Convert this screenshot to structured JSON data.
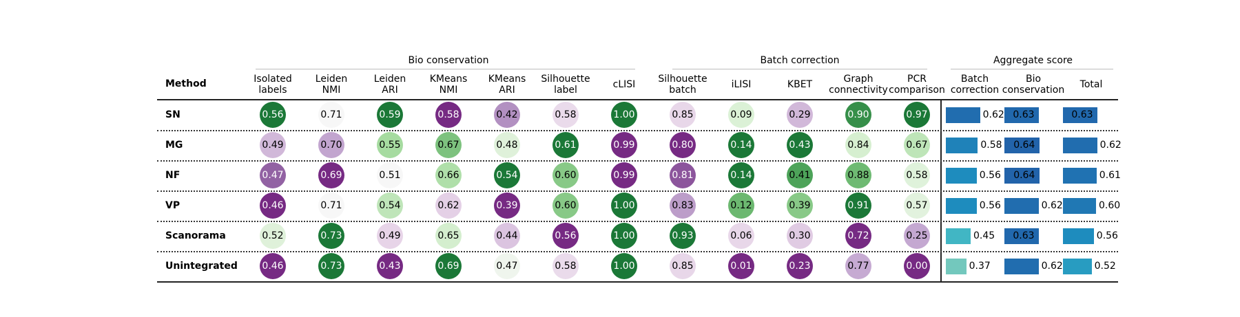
{
  "chart_data": {
    "type": "table",
    "method_header": "Method",
    "groups": [
      {
        "key": "bio",
        "title": "Bio conservation"
      },
      {
        "key": "batch",
        "title": "Batch correction"
      },
      {
        "key": "agg",
        "title": "Aggregate score"
      }
    ],
    "columns": [
      {
        "key": "isolated_labels",
        "group": "bio",
        "label": [
          "Isolated",
          "labels"
        ],
        "kind": "circle"
      },
      {
        "key": "leiden_nmi",
        "group": "bio",
        "label": [
          "Leiden",
          "NMI"
        ],
        "kind": "circle"
      },
      {
        "key": "leiden_ari",
        "group": "bio",
        "label": [
          "Leiden",
          "ARI"
        ],
        "kind": "circle"
      },
      {
        "key": "kmeans_nmi",
        "group": "bio",
        "label": [
          "KMeans",
          "NMI"
        ],
        "kind": "circle"
      },
      {
        "key": "kmeans_ari",
        "group": "bio",
        "label": [
          "KMeans",
          "ARI"
        ],
        "kind": "circle"
      },
      {
        "key": "silhouette_label",
        "group": "bio",
        "label": [
          "Silhouette",
          "label"
        ],
        "kind": "circle"
      },
      {
        "key": "clisi",
        "group": "bio",
        "label": [
          "cLISI"
        ],
        "kind": "circle"
      },
      {
        "key": "silhouette_batch",
        "group": "batch",
        "label": [
          "Silhouette",
          "batch"
        ],
        "kind": "circle"
      },
      {
        "key": "ilisi",
        "group": "batch",
        "label": [
          "iLISI"
        ],
        "kind": "circle"
      },
      {
        "key": "kbet",
        "group": "batch",
        "label": [
          "KBET"
        ],
        "kind": "circle"
      },
      {
        "key": "graph_connectivity",
        "group": "batch",
        "label": [
          "Graph",
          "connectivity"
        ],
        "kind": "circle"
      },
      {
        "key": "pcr_comparison",
        "group": "batch",
        "label": [
          "PCR",
          "comparison"
        ],
        "kind": "circle"
      },
      {
        "key": "agg_batch",
        "group": "agg",
        "label": [
          "Batch",
          "correction"
        ],
        "kind": "bar"
      },
      {
        "key": "agg_bio",
        "group": "agg",
        "label": [
          "Bio",
          "conservation"
        ],
        "kind": "bar"
      },
      {
        "key": "agg_total",
        "group": "agg",
        "label": [
          "Total"
        ],
        "kind": "bar"
      }
    ],
    "rows": [
      {
        "method": "SN",
        "values": [
          "0.56",
          "0.71",
          "0.59",
          "0.58",
          "0.42",
          "0.58",
          "1.00",
          "0.85",
          "0.09",
          "0.29",
          "0.90",
          "0.97",
          "0.62",
          "0.63",
          "0.63"
        ]
      },
      {
        "method": "MG",
        "values": [
          "0.49",
          "0.70",
          "0.55",
          "0.67",
          "0.48",
          "0.61",
          "0.99",
          "0.80",
          "0.14",
          "0.43",
          "0.84",
          "0.67",
          "0.58",
          "0.64",
          "0.62"
        ]
      },
      {
        "method": "NF",
        "values": [
          "0.47",
          "0.69",
          "0.51",
          "0.66",
          "0.54",
          "0.60",
          "0.99",
          "0.81",
          "0.14",
          "0.41",
          "0.88",
          "0.58",
          "0.56",
          "0.64",
          "0.61"
        ]
      },
      {
        "method": "VP",
        "values": [
          "0.46",
          "0.71",
          "0.54",
          "0.62",
          "0.39",
          "0.60",
          "1.00",
          "0.83",
          "0.12",
          "0.39",
          "0.91",
          "0.57",
          "0.56",
          "0.62",
          "0.60"
        ]
      },
      {
        "method": "Scanorama",
        "values": [
          "0.52",
          "0.73",
          "0.49",
          "0.65",
          "0.44",
          "0.56",
          "1.00",
          "0.93",
          "0.06",
          "0.30",
          "0.72",
          "0.25",
          "0.45",
          "0.63",
          "0.56"
        ]
      },
      {
        "method": "Unintegrated",
        "values": [
          "0.46",
          "0.73",
          "0.43",
          "0.69",
          "0.47",
          "0.58",
          "1.00",
          "0.85",
          "0.01",
          "0.23",
          "0.77",
          "0.00",
          "0.37",
          "0.62",
          "0.52"
        ]
      }
    ],
    "color_scale": {
      "low": [
        "#762a83",
        "#9970ab",
        "#c2a5cf",
        "#e7d4e8",
        "#f7f7f7"
      ],
      "high": [
        "#f7f7f7",
        "#d9f0d3",
        "#a6dba0",
        "#5aae61",
        "#1b7837"
      ]
    },
    "bar_colors": [
      "#7fcdbb",
      "#41b6c4",
      "#1d91c0",
      "#225ea8"
    ]
  }
}
